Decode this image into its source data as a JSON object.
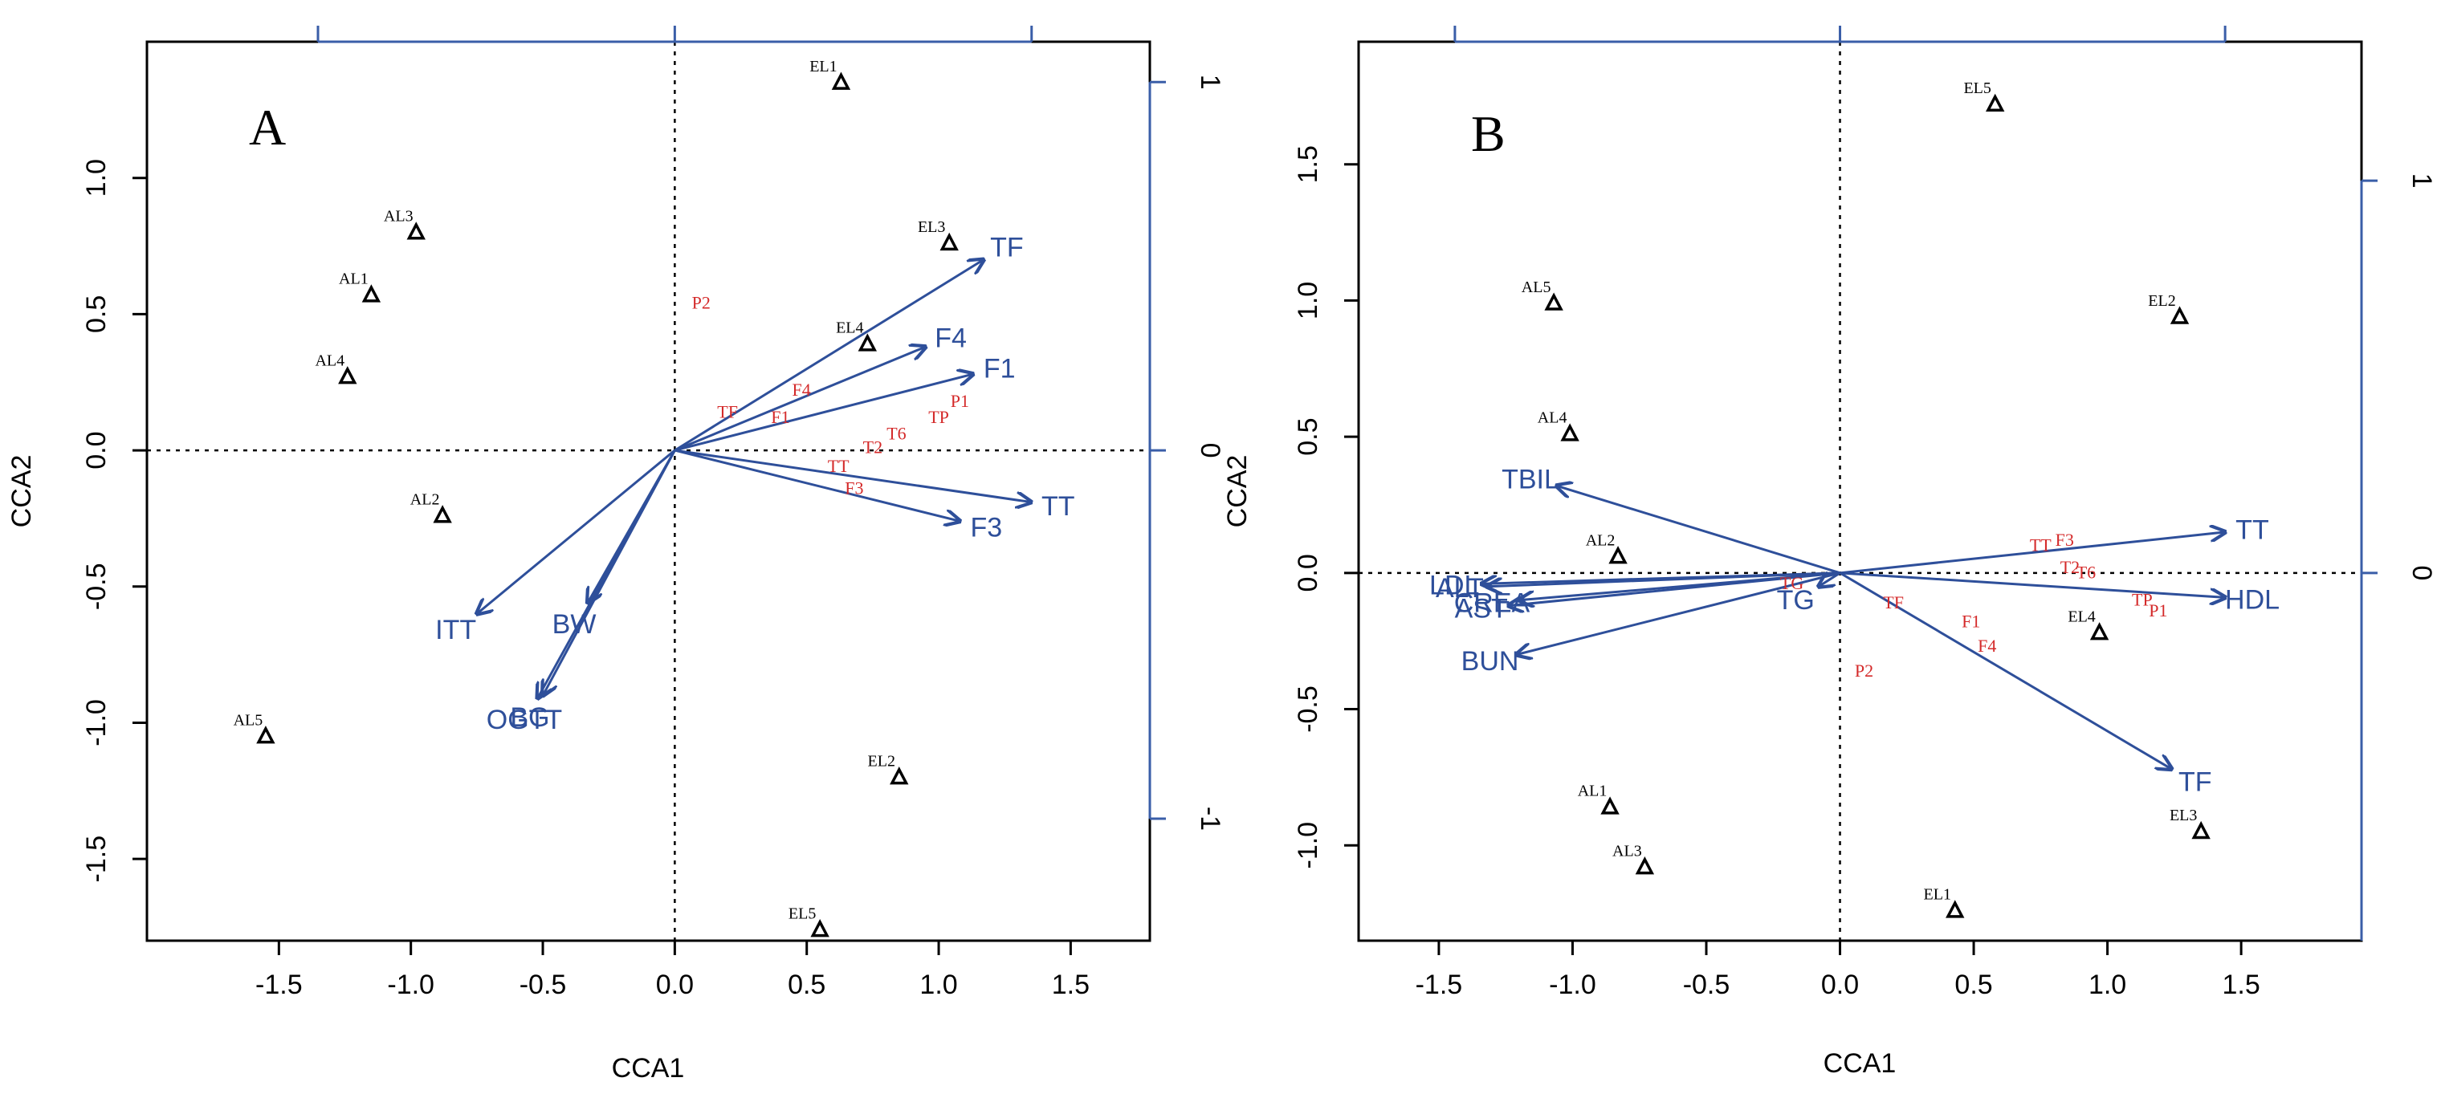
{
  "chart_data": [
    {
      "type": "scatter",
      "panel_label": "A",
      "xlabel": "CCA1",
      "ylabel": "CCA2",
      "xlim": [
        -2.0,
        1.8
      ],
      "ylim": [
        -1.8,
        1.5
      ],
      "xticks": [
        -1.5,
        -1.0,
        -0.5,
        0.0,
        0.5,
        1.0,
        1.5
      ],
      "xtick_labels": [
        "-1.5",
        "-1.0",
        "-0.5",
        "0.0",
        "0.5",
        "1.0",
        "1.5"
      ],
      "yticks": [
        -1.5,
        -1.0,
        -0.5,
        0.0,
        0.5,
        1.0
      ],
      "ytick_labels": [
        "-1.5",
        "-1.0",
        "-0.5",
        "0.0",
        "0.5",
        "1.0"
      ],
      "secondary_axis": {
        "scale": 1.352,
        "ticks": [
          -1,
          0,
          1
        ],
        "tick_labels": [
          "-1",
          "0",
          "1"
        ]
      },
      "sites": [
        {
          "label": "EL1",
          "x": 0.63,
          "y": 1.35
        },
        {
          "label": "EL3",
          "x": 1.04,
          "y": 0.76
        },
        {
          "label": "EL4",
          "x": 0.73,
          "y": 0.39
        },
        {
          "label": "AL3",
          "x": -0.98,
          "y": 0.8
        },
        {
          "label": "AL1",
          "x": -1.15,
          "y": 0.57
        },
        {
          "label": "AL4",
          "x": -1.24,
          "y": 0.27
        },
        {
          "label": "AL2",
          "x": -0.88,
          "y": -0.24
        },
        {
          "label": "AL5",
          "x": -1.55,
          "y": -1.05
        },
        {
          "label": "EL2",
          "x": 0.85,
          "y": -1.2
        },
        {
          "label": "EL5",
          "x": 0.55,
          "y": -1.76
        }
      ],
      "species": [
        {
          "label": "P2",
          "x": 0.1,
          "y": 0.52
        },
        {
          "label": "TF",
          "x": 0.2,
          "y": 0.12
        },
        {
          "label": "F4",
          "x": 0.48,
          "y": 0.2
        },
        {
          "label": "F1",
          "x": 0.4,
          "y": 0.1
        },
        {
          "label": "TP",
          "x": 1.0,
          "y": 0.1
        },
        {
          "label": "P1",
          "x": 1.08,
          "y": 0.16
        },
        {
          "label": "T6",
          "x": 0.84,
          "y": 0.04
        },
        {
          "label": "T2",
          "x": 0.75,
          "y": -0.01
        },
        {
          "label": "TT",
          "x": 0.62,
          "y": -0.08
        },
        {
          "label": "F3",
          "x": 0.68,
          "y": -0.16
        }
      ],
      "env_vectors": [
        {
          "label": "TF",
          "x": 1.17,
          "y": 0.7
        },
        {
          "label": "F4",
          "x": 0.95,
          "y": 0.38
        },
        {
          "label": "F1",
          "x": 1.13,
          "y": 0.28
        },
        {
          "label": "TT",
          "x": 1.35,
          "y": -0.19
        },
        {
          "label": "F3",
          "x": 1.08,
          "y": -0.26
        },
        {
          "label": "ITT",
          "x": -0.75,
          "y": -0.6
        },
        {
          "label": "BW",
          "x": -0.33,
          "y": -0.56
        },
        {
          "label": "BG",
          "x": -0.5,
          "y": -0.9
        },
        {
          "label": "OGTT",
          "x": -0.52,
          "y": -0.91
        }
      ]
    },
    {
      "type": "scatter",
      "panel_label": "B",
      "xlabel": "CCA1",
      "ylabel": "CCA2",
      "xlim": [
        -1.8,
        1.95
      ],
      "ylim": [
        -1.35,
        1.95
      ],
      "xticks": [
        -1.5,
        -1.0,
        -0.5,
        0.0,
        0.5,
        1.0,
        1.5
      ],
      "xtick_labels": [
        "-1.5",
        "-1.0",
        "-0.5",
        "0.0",
        "0.5",
        "1.0",
        "1.5"
      ],
      "yticks": [
        -1.0,
        -0.5,
        0.0,
        0.5,
        1.0,
        1.5
      ],
      "ytick_labels": [
        "-1.0",
        "-0.5",
        "0.0",
        "0.5",
        "1.0",
        "1.5"
      ],
      "secondary_axis": {
        "scale": 1.44,
        "ticks": [
          0,
          1
        ],
        "tick_labels": [
          "0",
          "1"
        ]
      },
      "sites": [
        {
          "label": "EL5",
          "x": 0.58,
          "y": 1.72
        },
        {
          "label": "EL2",
          "x": 1.27,
          "y": 0.94
        },
        {
          "label": "AL5",
          "x": -1.07,
          "y": 0.99
        },
        {
          "label": "AL4",
          "x": -1.01,
          "y": 0.51
        },
        {
          "label": "AL2",
          "x": -0.83,
          "y": 0.06
        },
        {
          "label": "EL4",
          "x": 0.97,
          "y": -0.22
        },
        {
          "label": "AL1",
          "x": -0.86,
          "y": -0.86
        },
        {
          "label": "AL3",
          "x": -0.73,
          "y": -1.08
        },
        {
          "label": "EL1",
          "x": 0.43,
          "y": -1.24
        },
        {
          "label": "EL3",
          "x": 1.35,
          "y": -0.95
        }
      ],
      "species": [
        {
          "label": "TT",
          "x": 0.75,
          "y": 0.08
        },
        {
          "label": "F3",
          "x": 0.84,
          "y": 0.1
        },
        {
          "label": "T2",
          "x": 0.86,
          "y": 0.0
        },
        {
          "label": "T6",
          "x": 0.92,
          "y": -0.02
        },
        {
          "label": "TP",
          "x": 1.13,
          "y": -0.12
        },
        {
          "label": "P1",
          "x": 1.19,
          "y": -0.16
        },
        {
          "label": "TF",
          "x": 0.2,
          "y": -0.13
        },
        {
          "label": "F1",
          "x": 0.49,
          "y": -0.2
        },
        {
          "label": "F4",
          "x": 0.55,
          "y": -0.29
        },
        {
          "label": "P2",
          "x": 0.09,
          "y": -0.38
        },
        {
          "label": "TG",
          "x": -0.18,
          "y": -0.06
        }
      ],
      "env_vectors": [
        {
          "label": "TT",
          "x": 1.44,
          "y": 0.15
        },
        {
          "label": "HDL",
          "x": 1.44,
          "y": -0.09
        },
        {
          "label": "TF",
          "x": 1.24,
          "y": -0.72
        },
        {
          "label": "TBIL",
          "x": -1.06,
          "y": 0.32
        },
        {
          "label": "LDL",
          "x": -1.34,
          "y": -0.04
        },
        {
          "label": "ALT",
          "x": -1.32,
          "y": -0.05
        },
        {
          "label": "CREA",
          "x": -1.2,
          "y": -0.1
        },
        {
          "label": "AST",
          "x": -1.24,
          "y": -0.12
        },
        {
          "label": "BUN",
          "x": -1.21,
          "y": -0.3
        },
        {
          "label": "TG",
          "x": -0.08,
          "y": -0.05
        }
      ]
    }
  ]
}
